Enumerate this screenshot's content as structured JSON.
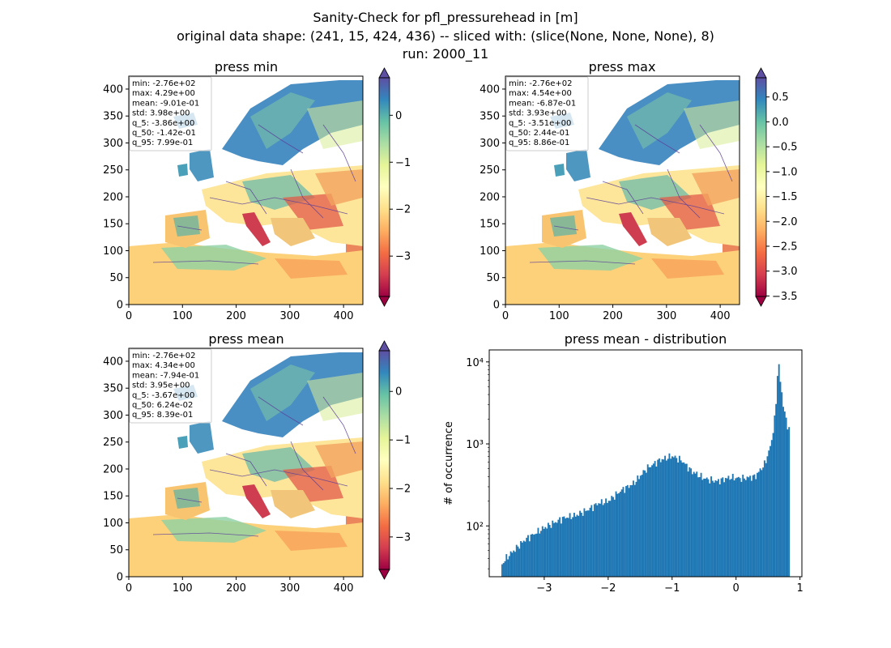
{
  "figure": {
    "title_lines": [
      "Sanity-Check for pfl_pressurehead in [m]",
      "original data shape: (241, 15, 424, 436) -- sliced with: (slice(None, None, None), 8)",
      "run: 2000_11"
    ]
  },
  "colors": {
    "colormap": [
      "#9e0142",
      "#d53e4f",
      "#f46d43",
      "#fdae61",
      "#fee08b",
      "#ffffbf",
      "#e6f598",
      "#abdda4",
      "#66c2a5",
      "#3288bd",
      "#5e4fa2"
    ],
    "histogram_bar": "#1f77b4",
    "stats_box_border": "#cccccc",
    "river_lines": "#5b3f9a"
  },
  "icons": {
    "colorbar_extend": "triangle-arrow"
  },
  "chart_data": [
    {
      "type": "heatmap",
      "title": "press min",
      "x_ticks": [
        0,
        100,
        200,
        300,
        400
      ],
      "y_ticks": [
        0,
        50,
        100,
        150,
        200,
        250,
        300,
        350,
        400
      ],
      "xlim": [
        0,
        436
      ],
      "ylim": [
        0,
        424
      ],
      "colorbar": {
        "ticks": [
          "0",
          "−1",
          "−2",
          "−3"
        ],
        "tick_values": [
          0,
          -1,
          -2,
          -3
        ],
        "range": [
          -3.86,
          0.799
        ],
        "extend": "both"
      },
      "stats": [
        "min: -2.76e+02",
        "max: 4.29e+00",
        "mean: -9.01e-01",
        "std: 3.98e+00",
        "q_5: -3.86e+00",
        "q_50: -1.42e-01",
        "q_95: 7.99e-01"
      ]
    },
    {
      "type": "heatmap",
      "title": "press max",
      "x_ticks": [
        0,
        100,
        200,
        300,
        400
      ],
      "y_ticks": [
        0,
        50,
        100,
        150,
        200,
        250,
        300,
        350,
        400
      ],
      "xlim": [
        0,
        436
      ],
      "ylim": [
        0,
        424
      ],
      "colorbar": {
        "ticks": [
          "0.5",
          "0.0",
          "−0.5",
          "−1.0",
          "−1.5",
          "−2.0",
          "−2.5",
          "−3.0",
          "−3.5"
        ],
        "tick_values": [
          0.5,
          0.0,
          -0.5,
          -1.0,
          -1.5,
          -2.0,
          -2.5,
          -3.0,
          -3.5
        ],
        "range": [
          -3.51,
          0.886
        ],
        "extend": "both"
      },
      "stats": [
        "min: -2.76e+02",
        "max: 4.54e+00",
        "mean: -6.87e-01",
        "std: 3.93e+00",
        "q_5: -3.51e+00",
        "q_50: 2.44e-01",
        "q_95: 8.86e-01"
      ]
    },
    {
      "type": "heatmap",
      "title": "press mean",
      "x_ticks": [
        0,
        100,
        200,
        300,
        400
      ],
      "y_ticks": [
        0,
        50,
        100,
        150,
        200,
        250,
        300,
        350,
        400
      ],
      "xlim": [
        0,
        436
      ],
      "ylim": [
        0,
        424
      ],
      "colorbar": {
        "ticks": [
          "0",
          "−1",
          "−2",
          "−3"
        ],
        "tick_values": [
          0,
          -1,
          -2,
          -3
        ],
        "range": [
          -3.67,
          0.839
        ],
        "extend": "both"
      },
      "stats": [
        "min: -2.76e+02",
        "max: 4.34e+00",
        "mean: -7.94e-01",
        "std: 3.95e+00",
        "q_5: -3.67e+00",
        "q_50: 6.24e-02",
        "q_95: 8.39e-01"
      ]
    },
    {
      "type": "bar",
      "title": "press mean - distribution",
      "ylabel": "# of occurrence",
      "xlabel": "",
      "yscale": "log",
      "x_ticks": [
        "−3",
        "−2",
        "−1",
        "0",
        "1"
      ],
      "x_tick_values": [
        -3,
        -2,
        -1,
        0,
        1
      ],
      "y_ticks": [
        "10²",
        "10³",
        "10⁴"
      ],
      "y_tick_values": [
        100,
        1000,
        10000
      ],
      "xlim": [
        -3.86,
        1.03
      ],
      "ylim": [
        24,
        14000
      ],
      "bin_range": [
        -3.67,
        0.84
      ],
      "profile_x": [
        -3.67,
        -3.6,
        -3.5,
        -3.3,
        -3.0,
        -2.7,
        -2.5,
        -2.3,
        -2.15,
        -2.0,
        -1.8,
        -1.6,
        -1.4,
        -1.2,
        -1.0,
        -0.85,
        -0.7,
        -0.5,
        -0.3,
        -0.1,
        0.1,
        0.3,
        0.45,
        0.55,
        0.62,
        0.66,
        0.7,
        0.76,
        0.8,
        0.84
      ],
      "profile_y": [
        33,
        40,
        48,
        68,
        95,
        125,
        135,
        160,
        190,
        200,
        270,
        330,
        500,
        630,
        710,
        630,
        470,
        380,
        350,
        390,
        380,
        400,
        570,
        1000,
        2500,
        11200,
        5000,
        2400,
        1700,
        1500
      ]
    }
  ]
}
